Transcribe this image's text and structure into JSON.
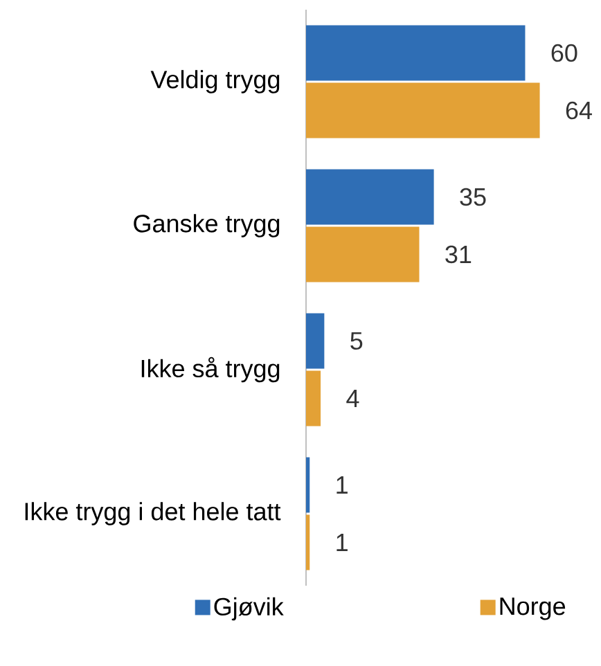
{
  "chart_data": {
    "type": "bar",
    "orientation": "horizontal",
    "categories": [
      "Veldig trygg",
      "Ganske trygg",
      "Ikke så trygg",
      "Ikke trygg i det hele tatt"
    ],
    "series": [
      {
        "name": "Gjøvik",
        "color": "#2f6eb5",
        "values": [
          60,
          35,
          5,
          1
        ]
      },
      {
        "name": "Norge",
        "color": "#e3a136",
        "values": [
          64,
          31,
          4,
          1
        ]
      }
    ],
    "data_labels": true,
    "tick_labels": "y",
    "legend": "bottom"
  }
}
